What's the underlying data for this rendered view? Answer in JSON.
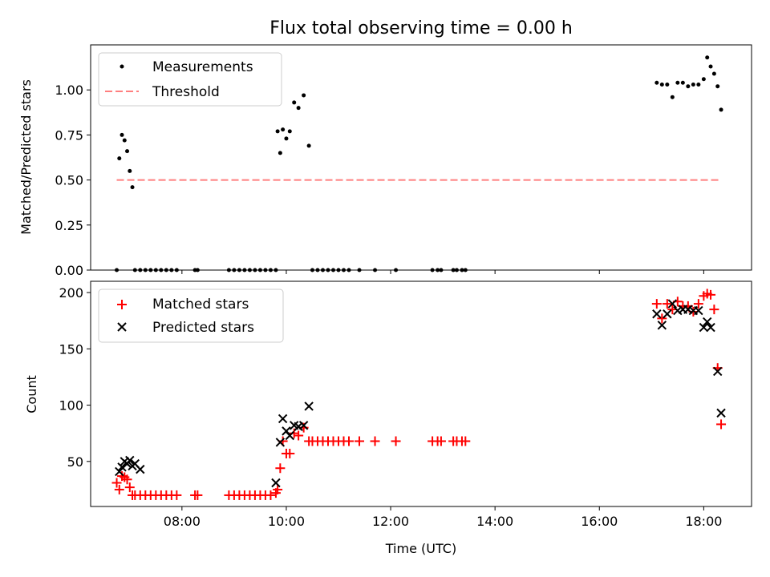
{
  "title": "Flux total observing time = 0.00 h",
  "colors": {
    "measurements": "#000000",
    "threshold": "#ff7f7f",
    "matched": "#ff0000",
    "predicted": "#000000"
  },
  "chart_data": [
    {
      "type": "scatter",
      "panel": "top",
      "ylabel": "Matched/Predicted stars",
      "ylim": [
        0,
        1.25
      ],
      "yticks": [
        "0.00",
        "0.25",
        "0.50",
        "0.75",
        "1.00"
      ],
      "x_range": [
        "06:15",
        "18:55"
      ],
      "legend": {
        "placement": "upper-left",
        "entries": [
          "Measurements",
          "Threshold"
        ]
      },
      "threshold": {
        "name": "Threshold",
        "value": 0.5,
        "x_start": "06:45",
        "x_end": "18:20"
      },
      "series": [
        {
          "name": "Measurements",
          "points": [
            [
              "06:45",
              0.0
            ],
            [
              "06:48",
              0.62
            ],
            [
              "06:51",
              0.75
            ],
            [
              "06:54",
              0.72
            ],
            [
              "06:57",
              0.66
            ],
            [
              "07:00",
              0.55
            ],
            [
              "07:03",
              0.46
            ],
            [
              "07:06",
              0.0
            ],
            [
              "07:12",
              0.0
            ],
            [
              "07:18",
              0.0
            ],
            [
              "07:24",
              0.0
            ],
            [
              "07:30",
              0.0
            ],
            [
              "07:36",
              0.0
            ],
            [
              "07:42",
              0.0
            ],
            [
              "07:48",
              0.0
            ],
            [
              "07:54",
              0.0
            ],
            [
              "08:15",
              0.0
            ],
            [
              "08:18",
              0.0
            ],
            [
              "08:54",
              0.0
            ],
            [
              "09:00",
              0.0
            ],
            [
              "09:06",
              0.0
            ],
            [
              "09:12",
              0.0
            ],
            [
              "09:18",
              0.0
            ],
            [
              "09:24",
              0.0
            ],
            [
              "09:30",
              0.0
            ],
            [
              "09:36",
              0.0
            ],
            [
              "09:42",
              0.0
            ],
            [
              "09:48",
              0.0
            ],
            [
              "09:50",
              0.77
            ],
            [
              "09:53",
              0.65
            ],
            [
              "09:56",
              0.78
            ],
            [
              "10:00",
              0.73
            ],
            [
              "10:04",
              0.77
            ],
            [
              "10:09",
              0.93
            ],
            [
              "10:14",
              0.9
            ],
            [
              "10:20",
              0.97
            ],
            [
              "10:26",
              0.69
            ],
            [
              "10:30",
              0.0
            ],
            [
              "10:36",
              0.0
            ],
            [
              "10:42",
              0.0
            ],
            [
              "10:48",
              0.0
            ],
            [
              "10:54",
              0.0
            ],
            [
              "11:00",
              0.0
            ],
            [
              "11:06",
              0.0
            ],
            [
              "11:12",
              0.0
            ],
            [
              "11:24",
              0.0
            ],
            [
              "11:42",
              0.0
            ],
            [
              "12:06",
              0.0
            ],
            [
              "12:48",
              0.0
            ],
            [
              "12:54",
              0.0
            ],
            [
              "12:58",
              0.0
            ],
            [
              "13:12",
              0.0
            ],
            [
              "13:16",
              0.0
            ],
            [
              "13:22",
              0.0
            ],
            [
              "13:26",
              0.0
            ],
            [
              "17:06",
              1.04
            ],
            [
              "17:12",
              1.03
            ],
            [
              "17:18",
              1.03
            ],
            [
              "17:24",
              0.96
            ],
            [
              "17:30",
              1.04
            ],
            [
              "17:36",
              1.04
            ],
            [
              "17:42",
              1.02
            ],
            [
              "17:48",
              1.03
            ],
            [
              "17:54",
              1.03
            ],
            [
              "18:00",
              1.06
            ],
            [
              "18:04",
              1.18
            ],
            [
              "18:08",
              1.13
            ],
            [
              "18:12",
              1.09
            ],
            [
              "18:16",
              1.02
            ],
            [
              "18:20",
              0.89
            ]
          ]
        }
      ]
    },
    {
      "type": "scatter",
      "panel": "bottom",
      "xlabel": "Time (UTC)",
      "ylabel": "Count",
      "ylim": [
        10,
        210
      ],
      "yticks": [
        50,
        100,
        150,
        200
      ],
      "x_range": [
        "06:15",
        "18:55"
      ],
      "xticks": [
        "08:00",
        "10:00",
        "12:00",
        "14:00",
        "16:00",
        "18:00"
      ],
      "legend": {
        "placement": "upper-left",
        "entries": [
          "Matched stars",
          "Predicted stars"
        ]
      },
      "series": [
        {
          "name": "Matched stars",
          "marker": "plus",
          "points": [
            [
              "06:45",
              31
            ],
            [
              "06:48",
              25
            ],
            [
              "06:51",
              37
            ],
            [
              "06:54",
              36
            ],
            [
              "06:57",
              34
            ],
            [
              "07:00",
              27
            ],
            [
              "07:03",
              20
            ],
            [
              "07:06",
              20
            ],
            [
              "07:12",
              20
            ],
            [
              "07:18",
              20
            ],
            [
              "07:24",
              20
            ],
            [
              "07:30",
              20
            ],
            [
              "07:36",
              20
            ],
            [
              "07:42",
              20
            ],
            [
              "07:48",
              20
            ],
            [
              "07:54",
              20
            ],
            [
              "08:15",
              20
            ],
            [
              "08:18",
              20
            ],
            [
              "08:54",
              20
            ],
            [
              "09:00",
              20
            ],
            [
              "09:06",
              20
            ],
            [
              "09:12",
              20
            ],
            [
              "09:18",
              20
            ],
            [
              "09:24",
              20
            ],
            [
              "09:30",
              20
            ],
            [
              "09:36",
              20
            ],
            [
              "09:42",
              20
            ],
            [
              "09:48",
              22
            ],
            [
              "09:50",
              25
            ],
            [
              "09:53",
              44
            ],
            [
              "09:56",
              68
            ],
            [
              "10:00",
              57
            ],
            [
              "10:04",
              57
            ],
            [
              "10:09",
              75
            ],
            [
              "10:14",
              73
            ],
            [
              "10:20",
              80
            ],
            [
              "10:26",
              68
            ],
            [
              "10:30",
              68
            ],
            [
              "10:36",
              68
            ],
            [
              "10:42",
              68
            ],
            [
              "10:48",
              68
            ],
            [
              "10:54",
              68
            ],
            [
              "11:00",
              68
            ],
            [
              "11:06",
              68
            ],
            [
              "11:12",
              68
            ],
            [
              "11:24",
              68
            ],
            [
              "11:42",
              68
            ],
            [
              "12:06",
              68
            ],
            [
              "12:48",
              68
            ],
            [
              "12:54",
              68
            ],
            [
              "12:58",
              68
            ],
            [
              "13:12",
              68
            ],
            [
              "13:16",
              68
            ],
            [
              "13:22",
              68
            ],
            [
              "13:26",
              68
            ],
            [
              "17:06",
              190
            ],
            [
              "17:12",
              177
            ],
            [
              "17:18",
              190
            ],
            [
              "17:24",
              185
            ],
            [
              "17:30",
              192
            ],
            [
              "17:36",
              188
            ],
            [
              "17:42",
              188
            ],
            [
              "17:48",
              183
            ],
            [
              "17:54",
              190
            ],
            [
              "18:00",
              197
            ],
            [
              "18:04",
              199
            ],
            [
              "18:08",
              198
            ],
            [
              "18:12",
              185
            ],
            [
              "18:16",
              133
            ],
            [
              "18:20",
              83
            ]
          ]
        },
        {
          "name": "Predicted stars",
          "marker": "x",
          "points": [
            [
              "06:48",
              41
            ],
            [
              "06:51",
              45
            ],
            [
              "06:54",
              50
            ],
            [
              "06:57",
              48
            ],
            [
              "07:00",
              51
            ],
            [
              "07:03",
              46
            ],
            [
              "07:06",
              48
            ],
            [
              "07:12",
              43
            ],
            [
              "09:48",
              31
            ],
            [
              "09:53",
              67
            ],
            [
              "09:56",
              88
            ],
            [
              "10:00",
              77
            ],
            [
              "10:04",
              73
            ],
            [
              "10:09",
              82
            ],
            [
              "10:14",
              81
            ],
            [
              "10:20",
              82
            ],
            [
              "10:26",
              99
            ],
            [
              "17:06",
              181
            ],
            [
              "17:12",
              171
            ],
            [
              "17:18",
              181
            ],
            [
              "17:24",
              190
            ],
            [
              "17:30",
              184
            ],
            [
              "17:36",
              185
            ],
            [
              "17:42",
              185
            ],
            [
              "17:48",
              184
            ],
            [
              "17:54",
              184
            ],
            [
              "18:00",
              169
            ],
            [
              "18:04",
              174
            ],
            [
              "18:08",
              169
            ],
            [
              "18:16",
              130
            ],
            [
              "18:20",
              93
            ]
          ]
        }
      ]
    }
  ]
}
